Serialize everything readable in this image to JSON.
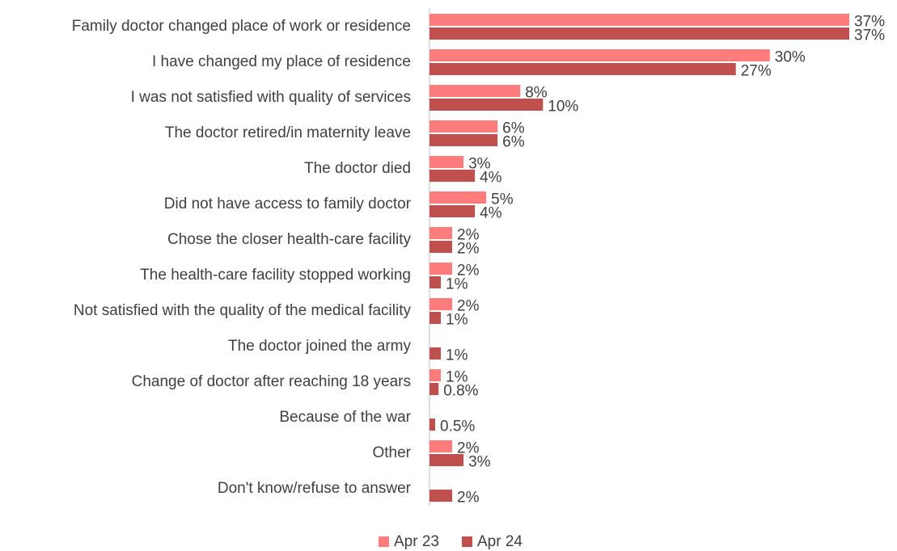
{
  "chart_data": {
    "type": "barh",
    "categories": [
      "Family doctor changed place of work or residence",
      "I have changed my place of residence",
      "I was not satisfied with quality of services",
      "The doctor retired/in maternity leave",
      "The doctor died",
      "Did not have access to family doctor",
      "Chose the closer health-care facility",
      "The health-care facility stopped working",
      "Not satisfied with the quality of the medical facility",
      "The doctor joined the army",
      "Change of doctor after reaching 18 years",
      "Because of the war",
      "Other",
      "Don't know/refuse to answer"
    ],
    "series": [
      {
        "name": "Apr 23",
        "color": "#ff7c7c",
        "values": [
          37,
          30,
          8,
          6,
          3,
          5,
          2,
          2,
          2,
          null,
          1,
          null,
          2,
          null
        ],
        "value_labels": [
          "37%",
          "30%",
          "8%",
          "6%",
          "3%",
          "5%",
          "2%",
          "2%",
          "2%",
          null,
          "1%",
          null,
          "2%",
          null
        ]
      },
      {
        "name": "Apr 24",
        "color": "#c0504d",
        "values": [
          37,
          27,
          10,
          6,
          4,
          4,
          2,
          1,
          1,
          1,
          0.8,
          0.5,
          3,
          2
        ],
        "value_labels": [
          "37%",
          "27%",
          "10%",
          "6%",
          "4%",
          "4%",
          "2%",
          "1%",
          "1%",
          "1%",
          "0.8%",
          "0.5%",
          "3%",
          "2%"
        ]
      }
    ],
    "xlim": [
      0,
      37
    ],
    "legend": "bottom"
  }
}
